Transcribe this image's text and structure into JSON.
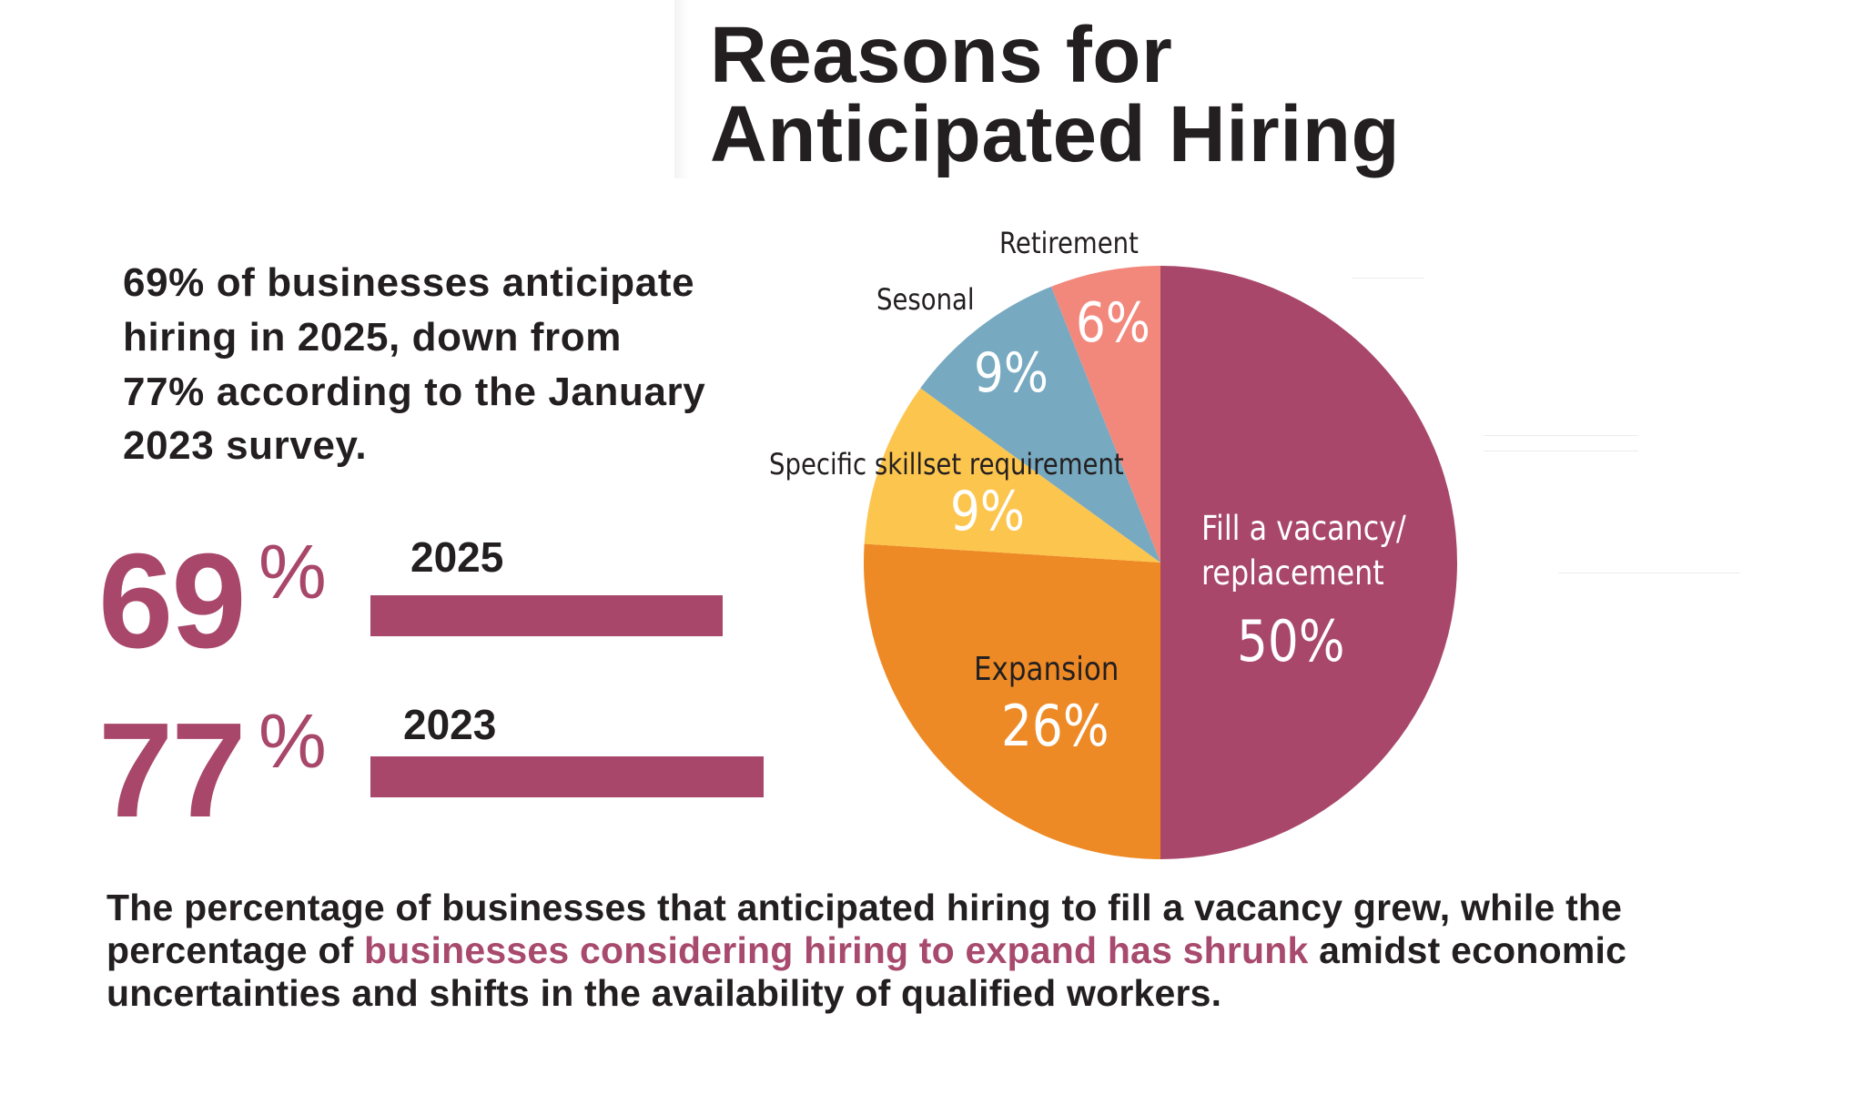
{
  "title": {
    "line1": "Reasons for",
    "line2": "Anticipated Hiring"
  },
  "intro": {
    "lines": [
      "69% of businesses anticipate",
      "hiring in 2025, down from",
      "77% according to the January",
      "2023 survey."
    ]
  },
  "comparison": [
    {
      "value": "69",
      "percent_sign": "%",
      "year": "2025",
      "bar_value": 69
    },
    {
      "value": "77",
      "percent_sign": "%",
      "year": "2023",
      "bar_value": 77
    }
  ],
  "colors": {
    "accent": "#A8476A",
    "text": "#231F20",
    "fill_vacancy": "#A8476A",
    "expansion": "#EE8A25",
    "skillset": "#FCC54E",
    "seasonal": "#77A9C0",
    "retirement": "#F2887C"
  },
  "pie_labels": {
    "retirement": {
      "name": "Retirement",
      "pct": "6%"
    },
    "seasonal": {
      "name": "Sesonal",
      "pct": "9%"
    },
    "skillset": {
      "name": "Specific skillset requirement",
      "pct": "9%"
    },
    "expansion": {
      "name": "Expansion",
      "pct": "26%"
    },
    "fill_vacancy": {
      "name_line1": "Fill a vacancy/",
      "name_line2": "replacement",
      "pct": "50%"
    }
  },
  "summary": {
    "part1": "The percentage of businesses that anticipated hiring to fill a vacancy grew, while the percentage of ",
    "highlight": "businesses considering hiring to expand has shrunk",
    "part2": " amidst economic uncertainties and shifts in the availability of qualified workers."
  },
  "chart_data": [
    {
      "type": "pie",
      "title": "Reasons for Anticipated Hiring",
      "categories": [
        "Fill a vacancy/replacement",
        "Expansion",
        "Specific skillset requirement",
        "Sesonal",
        "Retirement"
      ],
      "values": [
        50,
        26,
        9,
        9,
        6
      ],
      "unit": "%",
      "colors": [
        "#A8476A",
        "#EE8A25",
        "#FCC54E",
        "#77A9C0",
        "#F2887C"
      ],
      "start_angle_deg": 0,
      "direction": "clockwise from 12 o'clock"
    },
    {
      "type": "bar",
      "orientation": "horizontal",
      "title": "Businesses anticipating hiring",
      "categories": [
        "2025",
        "2023"
      ],
      "values": [
        69,
        77
      ],
      "unit": "%",
      "color": "#A8476A"
    }
  ]
}
